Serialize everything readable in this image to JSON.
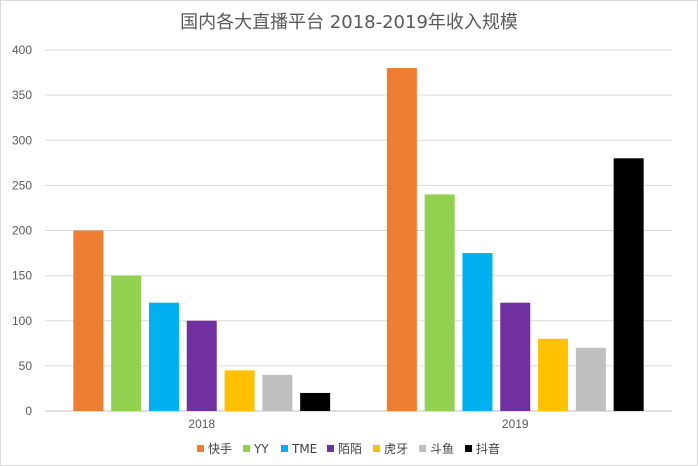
{
  "chart_data": {
    "type": "bar",
    "title": "国内各大直播平台 2018-2019年收入规模",
    "categories": [
      "2018",
      "2019"
    ],
    "series": [
      {
        "name": "快手",
        "color": "#ed7d31",
        "values": [
          200,
          380
        ]
      },
      {
        "name": "YY",
        "color": "#92d050",
        "values": [
          150,
          240
        ]
      },
      {
        "name": "TME",
        "color": "#00b0f0",
        "values": [
          120,
          175
        ]
      },
      {
        "name": "陌陌",
        "color": "#7030a0",
        "values": [
          100,
          120
        ]
      },
      {
        "name": "虎牙",
        "color": "#ffc000",
        "values": [
          45,
          80
        ]
      },
      {
        "name": "斗鱼",
        "color": "#bfbfbf",
        "values": [
          40,
          70
        ]
      },
      {
        "name": "抖音",
        "color": "#000000",
        "values": [
          20,
          280
        ]
      }
    ],
    "ylim": [
      0,
      400
    ],
    "yticks": [
      0,
      50,
      100,
      150,
      200,
      250,
      300,
      350,
      400
    ],
    "grid": true,
    "legend": "bottom"
  }
}
